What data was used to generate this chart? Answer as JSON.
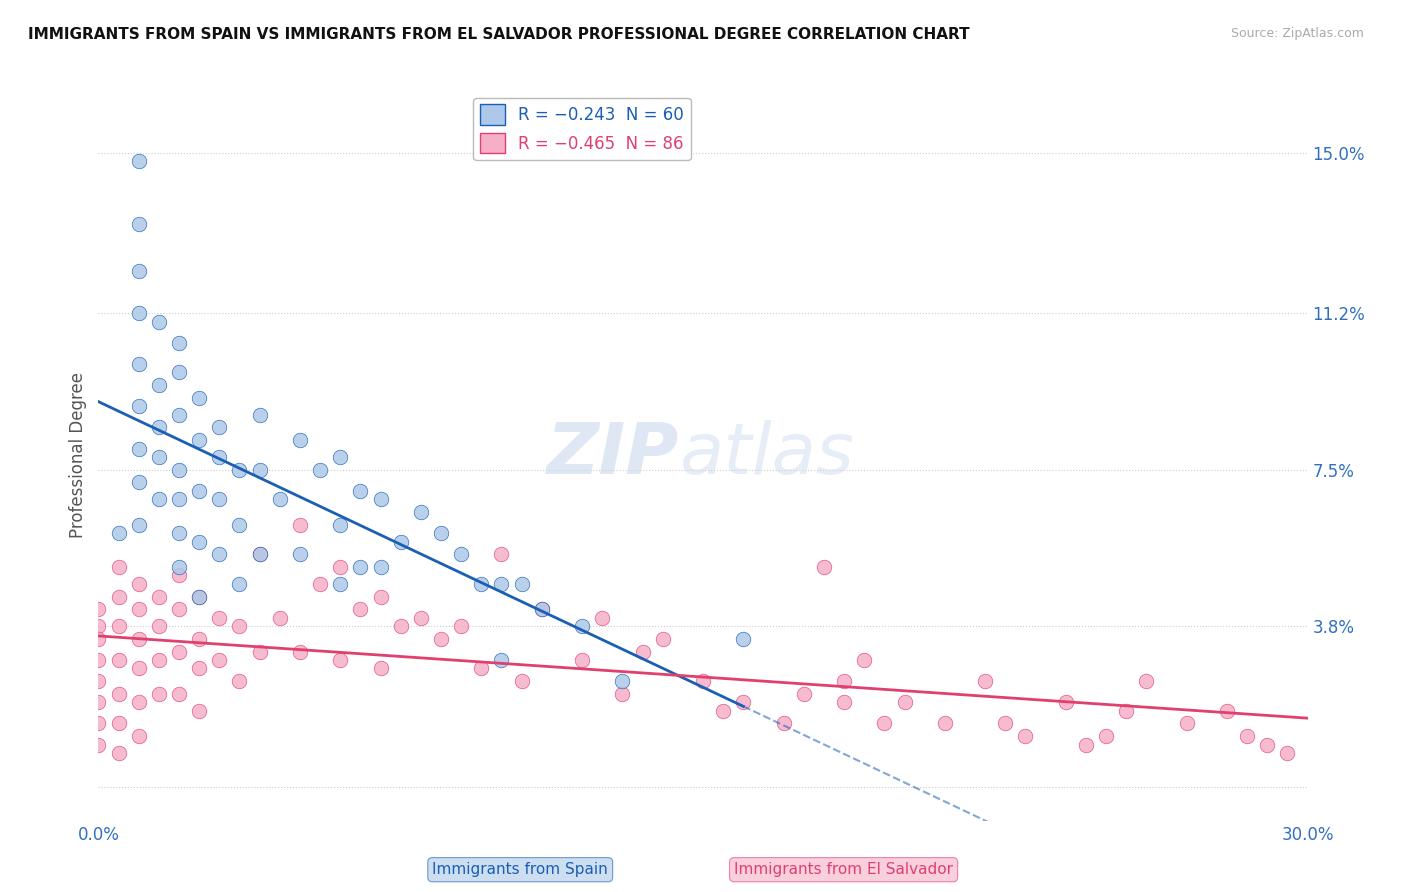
{
  "title": "IMMIGRANTS FROM SPAIN VS IMMIGRANTS FROM EL SALVADOR PROFESSIONAL DEGREE CORRELATION CHART",
  "source": "Source: ZipAtlas.com",
  "ylabel": "Professional Degree",
  "yticks": [
    0.0,
    0.038,
    0.075,
    0.112,
    0.15
  ],
  "ytick_labels": [
    "",
    "3.8%",
    "7.5%",
    "11.2%",
    "15.0%"
  ],
  "xlim": [
    0.0,
    0.3
  ],
  "ylim": [
    -0.008,
    0.165
  ],
  "legend_spain": "R = -0.243  N = 60",
  "legend_salvador": "R = -0.465  N = 86",
  "color_spain": "#adc8e8",
  "color_salvador": "#f5afc8",
  "line_color_spain": "#1a5fb4",
  "line_color_salvador": "#e0406e",
  "watermark_zip": "ZIP",
  "watermark_atlas": "atlas",
  "spain_x": [
    0.005,
    0.01,
    0.01,
    0.01,
    0.01,
    0.01,
    0.01,
    0.01,
    0.01,
    0.01,
    0.015,
    0.015,
    0.015,
    0.015,
    0.015,
    0.02,
    0.02,
    0.02,
    0.02,
    0.02,
    0.02,
    0.02,
    0.025,
    0.025,
    0.025,
    0.025,
    0.025,
    0.03,
    0.03,
    0.03,
    0.03,
    0.035,
    0.035,
    0.035,
    0.04,
    0.04,
    0.04,
    0.045,
    0.05,
    0.05,
    0.055,
    0.06,
    0.06,
    0.06,
    0.065,
    0.065,
    0.07,
    0.07,
    0.075,
    0.08,
    0.085,
    0.09,
    0.095,
    0.1,
    0.1,
    0.105,
    0.11,
    0.12,
    0.13,
    0.16
  ],
  "spain_y": [
    0.06,
    0.148,
    0.133,
    0.122,
    0.112,
    0.1,
    0.09,
    0.08,
    0.072,
    0.062,
    0.11,
    0.095,
    0.085,
    0.078,
    0.068,
    0.105,
    0.098,
    0.088,
    0.075,
    0.068,
    0.06,
    0.052,
    0.092,
    0.082,
    0.07,
    0.058,
    0.045,
    0.085,
    0.078,
    0.068,
    0.055,
    0.075,
    0.062,
    0.048,
    0.088,
    0.075,
    0.055,
    0.068,
    0.082,
    0.055,
    0.075,
    0.078,
    0.062,
    0.048,
    0.07,
    0.052,
    0.068,
    0.052,
    0.058,
    0.065,
    0.06,
    0.055,
    0.048,
    0.048,
    0.03,
    0.048,
    0.042,
    0.038,
    0.025,
    0.035
  ],
  "salvador_x": [
    0.0,
    0.0,
    0.0,
    0.0,
    0.0,
    0.0,
    0.0,
    0.0,
    0.005,
    0.005,
    0.005,
    0.005,
    0.005,
    0.005,
    0.005,
    0.01,
    0.01,
    0.01,
    0.01,
    0.01,
    0.01,
    0.015,
    0.015,
    0.015,
    0.015,
    0.02,
    0.02,
    0.02,
    0.02,
    0.025,
    0.025,
    0.025,
    0.025,
    0.03,
    0.03,
    0.035,
    0.035,
    0.04,
    0.04,
    0.045,
    0.05,
    0.05,
    0.055,
    0.06,
    0.06,
    0.065,
    0.07,
    0.07,
    0.075,
    0.08,
    0.085,
    0.09,
    0.095,
    0.1,
    0.105,
    0.11,
    0.12,
    0.125,
    0.13,
    0.135,
    0.14,
    0.15,
    0.155,
    0.16,
    0.17,
    0.175,
    0.18,
    0.185,
    0.19,
    0.195,
    0.2,
    0.21,
    0.22,
    0.23,
    0.24,
    0.25,
    0.255,
    0.26,
    0.27,
    0.28,
    0.285,
    0.29,
    0.295,
    0.225,
    0.245,
    0.185
  ],
  "salvador_y": [
    0.042,
    0.038,
    0.035,
    0.03,
    0.025,
    0.02,
    0.015,
    0.01,
    0.052,
    0.045,
    0.038,
    0.03,
    0.022,
    0.015,
    0.008,
    0.048,
    0.042,
    0.035,
    0.028,
    0.02,
    0.012,
    0.045,
    0.038,
    0.03,
    0.022,
    0.05,
    0.042,
    0.032,
    0.022,
    0.045,
    0.035,
    0.028,
    0.018,
    0.04,
    0.03,
    0.038,
    0.025,
    0.055,
    0.032,
    0.04,
    0.062,
    0.032,
    0.048,
    0.052,
    0.03,
    0.042,
    0.045,
    0.028,
    0.038,
    0.04,
    0.035,
    0.038,
    0.028,
    0.055,
    0.025,
    0.042,
    0.03,
    0.04,
    0.022,
    0.032,
    0.035,
    0.025,
    0.018,
    0.02,
    0.015,
    0.022,
    0.052,
    0.025,
    0.03,
    0.015,
    0.02,
    0.015,
    0.025,
    0.012,
    0.02,
    0.012,
    0.018,
    0.025,
    0.015,
    0.018,
    0.012,
    0.01,
    0.008,
    0.015,
    0.01,
    0.02
  ]
}
